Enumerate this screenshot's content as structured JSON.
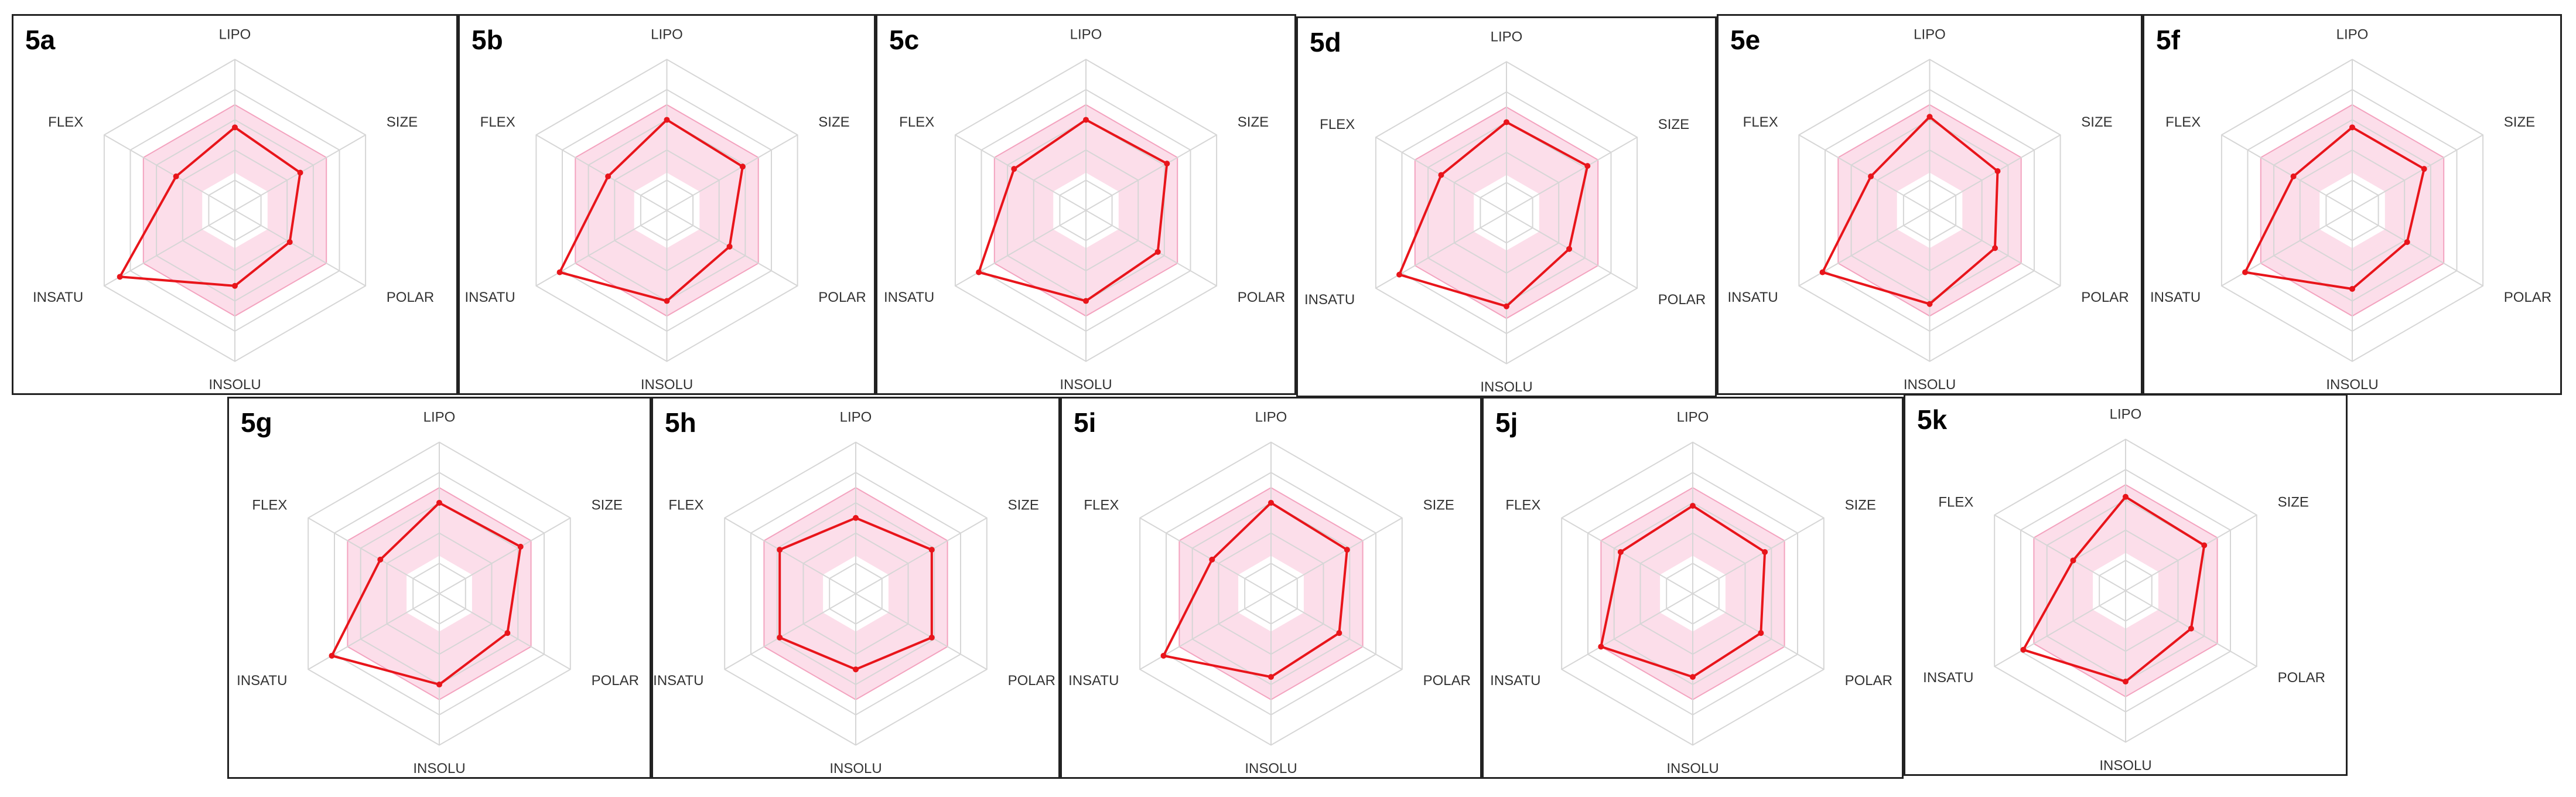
{
  "chart_data": [
    {
      "id": "5a",
      "type": "radar",
      "axes": [
        "LIPO",
        "SIZE",
        "POLAR",
        "INSOLU",
        "INSATU",
        "FLEX"
      ],
      "values": [
        0.55,
        0.5,
        0.42,
        0.5,
        0.88,
        0.45
      ],
      "range": [
        0,
        1
      ],
      "optimal_range": {
        "lower": [
          0.25,
          0.25,
          0.25,
          0.25,
          0.25,
          0.25
        ],
        "upper": [
          0.7,
          0.7,
          0.7,
          0.7,
          0.7,
          0.7
        ]
      },
      "colors": {
        "line": "#e8151b",
        "range_fill": "#fcd8e6",
        "grid": "#d6d6d6"
      }
    },
    {
      "id": "5b",
      "type": "radar",
      "axes": [
        "LIPO",
        "SIZE",
        "POLAR",
        "INSOLU",
        "INSATU",
        "FLEX"
      ],
      "values": [
        0.6,
        0.58,
        0.48,
        0.6,
        0.82,
        0.45
      ],
      "range": [
        0,
        1
      ],
      "optimal_range": {
        "lower": [
          0.25,
          0.25,
          0.25,
          0.25,
          0.25,
          0.25
        ],
        "upper": [
          0.7,
          0.7,
          0.7,
          0.7,
          0.7,
          0.7
        ]
      },
      "colors": {
        "line": "#e8151b",
        "range_fill": "#fcd8e6",
        "grid": "#d6d6d6"
      }
    },
    {
      "id": "5c",
      "type": "radar",
      "axes": [
        "LIPO",
        "SIZE",
        "POLAR",
        "INSOLU",
        "INSATU",
        "FLEX"
      ],
      "values": [
        0.6,
        0.62,
        0.55,
        0.6,
        0.82,
        0.55
      ],
      "range": [
        0,
        1
      ],
      "optimal_range": {
        "lower": [
          0.25,
          0.25,
          0.25,
          0.25,
          0.25,
          0.25
        ],
        "upper": [
          0.7,
          0.7,
          0.7,
          0.7,
          0.7,
          0.7
        ]
      },
      "colors": {
        "line": "#e8151b",
        "range_fill": "#fcd8e6",
        "grid": "#d6d6d6"
      }
    },
    {
      "id": "5d",
      "type": "radar",
      "axes": [
        "LIPO",
        "SIZE",
        "POLAR",
        "INSOLU",
        "INSATU",
        "FLEX"
      ],
      "values": [
        0.6,
        0.62,
        0.48,
        0.62,
        0.82,
        0.5
      ],
      "range": [
        0,
        1
      ],
      "optimal_range": {
        "lower": [
          0.25,
          0.25,
          0.25,
          0.25,
          0.25,
          0.25
        ],
        "upper": [
          0.7,
          0.7,
          0.7,
          0.7,
          0.7,
          0.7
        ]
      },
      "colors": {
        "line": "#e8151b",
        "range_fill": "#fcd8e6",
        "grid": "#d6d6d6"
      }
    },
    {
      "id": "5e",
      "type": "radar",
      "axes": [
        "LIPO",
        "SIZE",
        "POLAR",
        "INSOLU",
        "INSATU",
        "FLEX"
      ],
      "values": [
        0.62,
        0.52,
        0.5,
        0.62,
        0.82,
        0.45
      ],
      "range": [
        0,
        1
      ],
      "optimal_range": {
        "lower": [
          0.25,
          0.25,
          0.25,
          0.25,
          0.25,
          0.25
        ],
        "upper": [
          0.7,
          0.7,
          0.7,
          0.7,
          0.7,
          0.7
        ]
      },
      "colors": {
        "line": "#e8151b",
        "range_fill": "#fcd8e6",
        "grid": "#d6d6d6"
      }
    },
    {
      "id": "5f",
      "type": "radar",
      "axes": [
        "LIPO",
        "SIZE",
        "POLAR",
        "INSOLU",
        "INSATU",
        "FLEX"
      ],
      "values": [
        0.55,
        0.55,
        0.42,
        0.52,
        0.82,
        0.45
      ],
      "range": [
        0,
        1
      ],
      "optimal_range": {
        "lower": [
          0.25,
          0.25,
          0.25,
          0.25,
          0.25,
          0.25
        ],
        "upper": [
          0.7,
          0.7,
          0.7,
          0.7,
          0.7,
          0.7
        ]
      },
      "colors": {
        "line": "#e8151b",
        "range_fill": "#fcd8e6",
        "grid": "#d6d6d6"
      }
    },
    {
      "id": "5g",
      "type": "radar",
      "axes": [
        "LIPO",
        "SIZE",
        "POLAR",
        "INSOLU",
        "INSATU",
        "FLEX"
      ],
      "values": [
        0.6,
        0.62,
        0.52,
        0.6,
        0.82,
        0.45
      ],
      "range": [
        0,
        1
      ],
      "optimal_range": {
        "lower": [
          0.25,
          0.25,
          0.25,
          0.25,
          0.25,
          0.25
        ],
        "upper": [
          0.7,
          0.7,
          0.7,
          0.7,
          0.7,
          0.7
        ]
      },
      "colors": {
        "line": "#e8151b",
        "range_fill": "#fcd8e6",
        "grid": "#d6d6d6"
      }
    },
    {
      "id": "5h",
      "type": "radar",
      "axes": [
        "LIPO",
        "SIZE",
        "POLAR",
        "INSOLU",
        "INSATU",
        "FLEX"
      ],
      "values": [
        0.5,
        0.58,
        0.58,
        0.5,
        0.58,
        0.58
      ],
      "range": [
        0,
        1
      ],
      "optimal_range": {
        "lower": [
          0.25,
          0.25,
          0.25,
          0.25,
          0.25,
          0.25
        ],
        "upper": [
          0.7,
          0.7,
          0.7,
          0.7,
          0.7,
          0.7
        ]
      },
      "colors": {
        "line": "#e8151b",
        "range_fill": "#fcd8e6",
        "grid": "#d6d6d6"
      }
    },
    {
      "id": "5i",
      "type": "radar",
      "axes": [
        "LIPO",
        "SIZE",
        "POLAR",
        "INSOLU",
        "INSATU",
        "FLEX"
      ],
      "values": [
        0.6,
        0.58,
        0.52,
        0.55,
        0.82,
        0.45
      ],
      "range": [
        0,
        1
      ],
      "optimal_range": {
        "lower": [
          0.25,
          0.25,
          0.25,
          0.25,
          0.25,
          0.25
        ],
        "upper": [
          0.7,
          0.7,
          0.7,
          0.7,
          0.7,
          0.7
        ]
      },
      "colors": {
        "line": "#e8151b",
        "range_fill": "#fcd8e6",
        "grid": "#d6d6d6"
      }
    },
    {
      "id": "5j",
      "type": "radar",
      "axes": [
        "LIPO",
        "SIZE",
        "POLAR",
        "INSOLU",
        "INSATU",
        "FLEX"
      ],
      "values": [
        0.58,
        0.55,
        0.52,
        0.55,
        0.7,
        0.55
      ],
      "range": [
        0,
        1
      ],
      "optimal_range": {
        "lower": [
          0.25,
          0.25,
          0.25,
          0.25,
          0.25,
          0.25
        ],
        "upper": [
          0.7,
          0.7,
          0.7,
          0.7,
          0.7,
          0.7
        ]
      },
      "colors": {
        "line": "#e8151b",
        "range_fill": "#fcd8e6",
        "grid": "#d6d6d6"
      }
    },
    {
      "id": "5k",
      "type": "radar",
      "axes": [
        "LIPO",
        "SIZE",
        "POLAR",
        "INSOLU",
        "INSATU",
        "FLEX"
      ],
      "values": [
        0.62,
        0.6,
        0.5,
        0.6,
        0.78,
        0.4
      ],
      "range": [
        0,
        1
      ],
      "optimal_range": {
        "lower": [
          0.25,
          0.25,
          0.25,
          0.25,
          0.25,
          0.25
        ],
        "upper": [
          0.7,
          0.7,
          0.7,
          0.7,
          0.7,
          0.7
        ]
      },
      "colors": {
        "line": "#e8151b",
        "range_fill": "#fcd8e6",
        "grid": "#d6d6d6"
      }
    }
  ]
}
